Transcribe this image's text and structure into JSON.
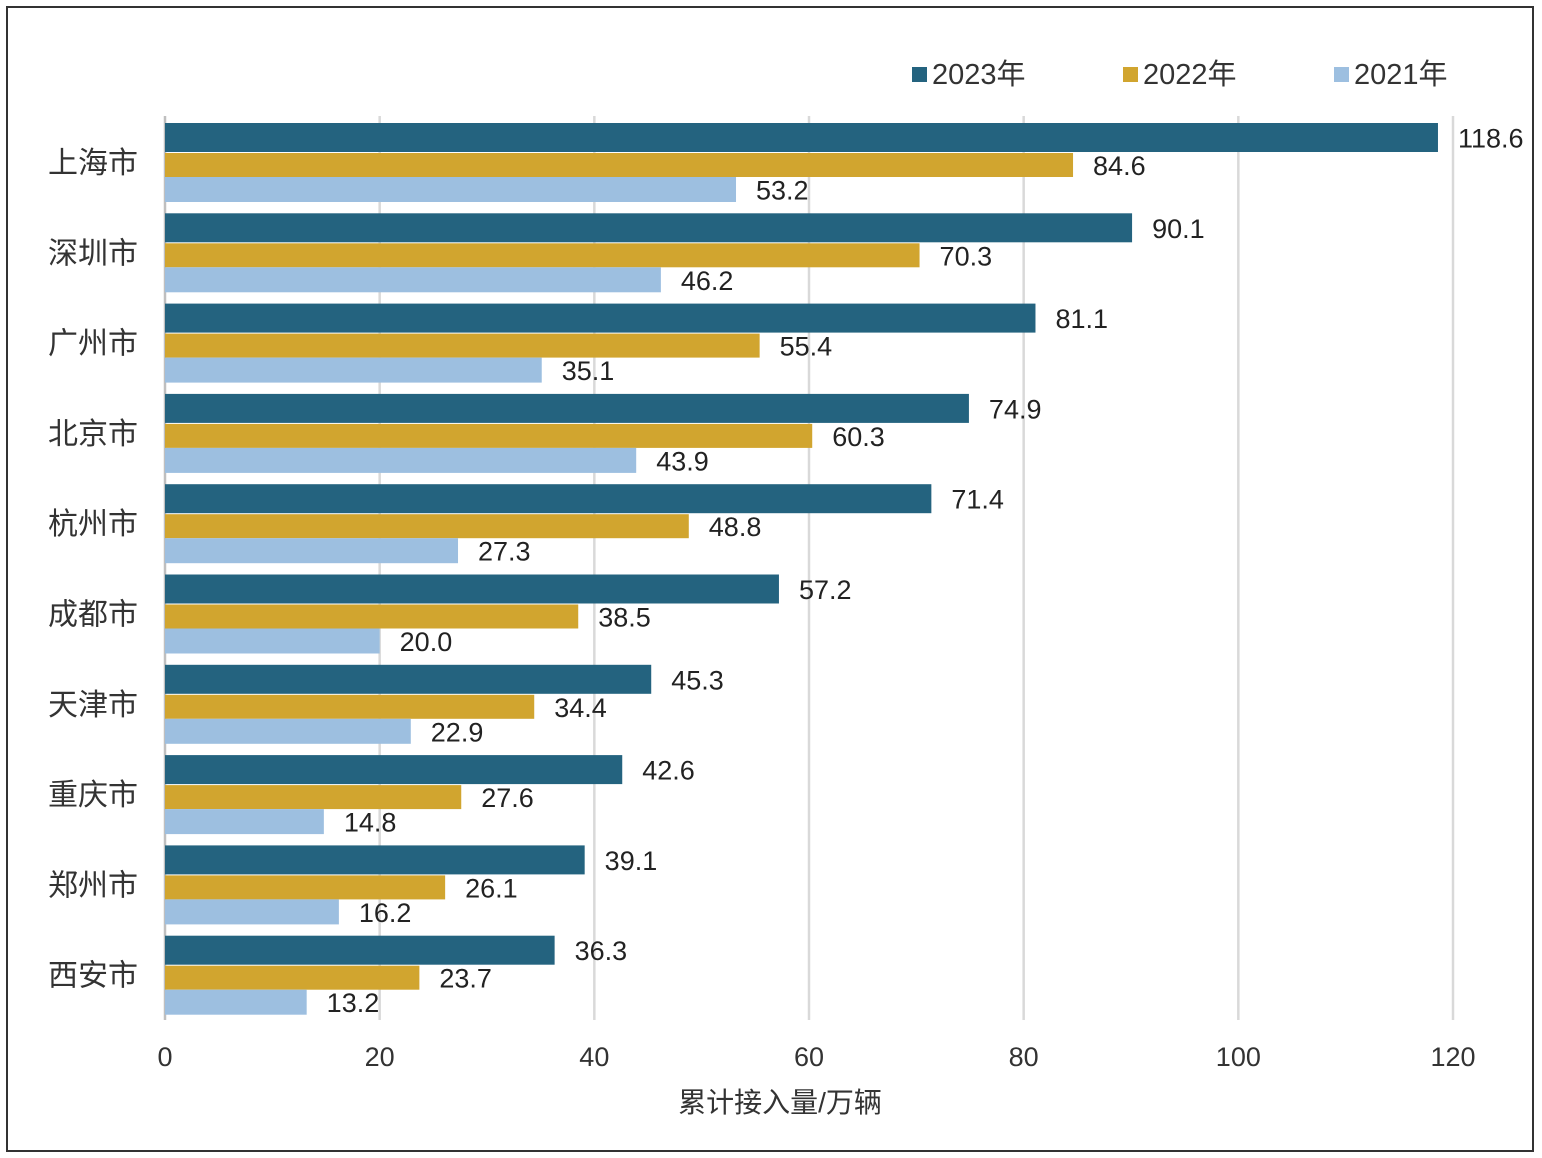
{
  "chart_data": {
    "type": "bar",
    "orientation": "horizontal",
    "categories": [
      "上海市",
      "深圳市",
      "广州市",
      "北京市",
      "杭州市",
      "成都市",
      "天津市",
      "重庆市",
      "郑州市",
      "西安市"
    ],
    "series": [
      {
        "name": "2023年",
        "color": "#24637f",
        "values": [
          118.6,
          90.1,
          81.1,
          74.9,
          71.4,
          57.2,
          45.3,
          42.6,
          39.1,
          36.3
        ]
      },
      {
        "name": "2022年",
        "color": "#d1a52f",
        "values": [
          84.6,
          70.3,
          55.4,
          60.3,
          48.8,
          38.5,
          34.4,
          27.6,
          26.1,
          23.7
        ]
      },
      {
        "name": "2021年",
        "color": "#9dbfe0",
        "values": [
          53.2,
          46.2,
          35.1,
          43.9,
          27.3,
          20.0,
          22.9,
          14.8,
          16.2,
          13.2
        ]
      }
    ],
    "xlabel": "累计接入量/万辆",
    "ylabel": "",
    "xlim": [
      0,
      120
    ],
    "xticks": [
      0,
      20,
      40,
      60,
      80,
      100,
      120
    ],
    "grid": true,
    "legend": "top-right"
  }
}
